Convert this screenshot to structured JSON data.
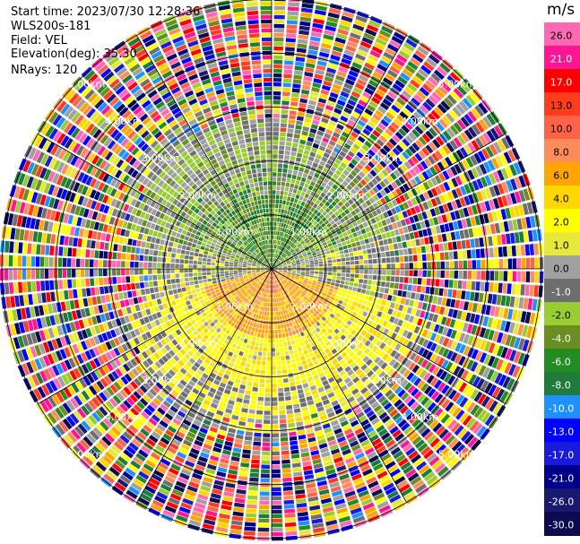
{
  "info": {
    "start_time": "Start time: 2023/07/30 12:28:36",
    "station": "WLS200s-181",
    "field": "Field: VEL",
    "elevation": "Elevation(deg): 35.30",
    "nrays": "NRays: 120"
  },
  "colorbar": {
    "unit": "m/s",
    "labels": [
      "26.0",
      "21.0",
      "17.0",
      "13.0",
      "10.0",
      "8.0",
      "6.0",
      "4.0",
      "2.0",
      "1.0",
      "0.0",
      "-1.0",
      "-2.0",
      "-4.0",
      "-6.0",
      "-8.0",
      "-10.0",
      "-13.0",
      "-17.0",
      "-21.0",
      "-26.0",
      "-30.0"
    ],
    "colors": [
      "#ff69b4",
      "#ff1493",
      "#ff0000",
      "#ff3c1e",
      "#ff6347",
      "#ff8c5a",
      "#ffa500",
      "#ffd700",
      "#ffff00",
      "#e8e838",
      "#a0a0a0",
      "#6e6e6e",
      "#9acd32",
      "#6b8e23",
      "#228b22",
      "#1e7b3c",
      "#1e90ff",
      "#0000ff",
      "#1a1adc",
      "#00008b",
      "#191970",
      "#0a0a50"
    ]
  },
  "chart_data": {
    "type": "heatmap",
    "projection": "PPI polar scan",
    "field": "VEL",
    "units": "m/s",
    "nrays": 120,
    "elevation_deg": 35.3,
    "range_rings_km": [
      1.0,
      2.0,
      3.0,
      4.0,
      5.0
    ],
    "ring_labels": {
      "r1": "1.00km",
      "r2": "2.00km",
      "r3": "3.00km",
      "r4": "4.00km",
      "r5": "5.00km"
    },
    "value_range": [
      -30,
      26
    ],
    "description_pattern": {
      "north_near": "-4.0 to -6.0 (green)",
      "south_near": "2.0 to 10.0 (yellow/orange)",
      "far_range": "noise (random colors)"
    }
  }
}
